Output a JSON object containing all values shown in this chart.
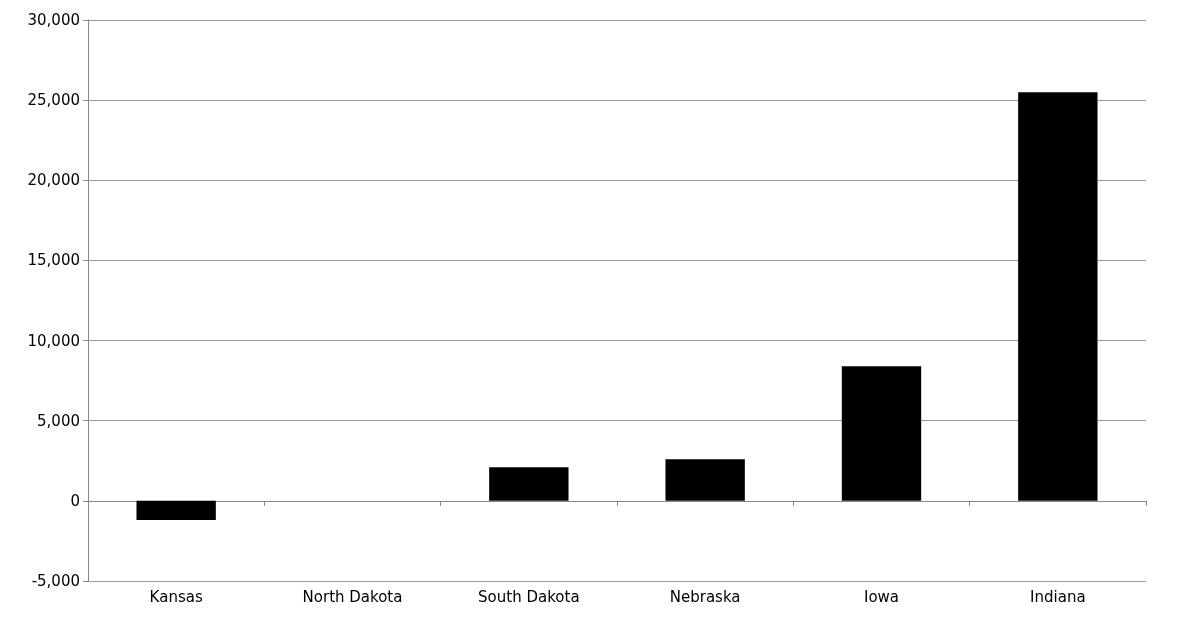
{
  "chart_data": {
    "type": "bar",
    "categories": [
      "Kansas",
      "North Dakota",
      "South Dakota",
      "Nebraska",
      "Iowa",
      "Indiana"
    ],
    "values": [
      -1200,
      0,
      2100,
      2600,
      8400,
      25500
    ],
    "color": "#000000",
    "ylim": [
      -5000,
      30000
    ],
    "yticks": [
      {
        "value": -5000,
        "label": "-5,000"
      },
      0,
      {
        "value": 5000,
        "label": "5,000"
      },
      {
        "value": 10000,
        "label": "10,000"
      },
      {
        "value": 15000,
        "label": "15,000"
      },
      {
        "value": 20000,
        "label": "20,000"
      },
      {
        "value": 25000,
        "label": "25,000"
      },
      {
        "value": 30000,
        "label": "30,000"
      }
    ],
    "grid": "y"
  }
}
